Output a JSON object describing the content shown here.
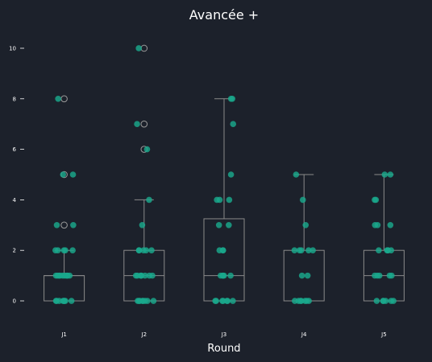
{
  "chart_data": {
    "type": "box",
    "title": "Avancée +",
    "xlabel": "Round",
    "ylabel": "",
    "ylim": [
      -0.7,
      10.7
    ],
    "yticks": [
      0,
      2,
      4,
      6,
      8,
      10
    ],
    "grid": false,
    "colors": {
      "background": "#1c212b",
      "box_stroke": "#8a8a8a",
      "whisker": "#8a8a8a",
      "points": "#1aa88c",
      "outlier_stroke": "#9a9a9a",
      "text": "#ffffff"
    },
    "categories": [
      "J1",
      "J2",
      "J3",
      "J4",
      "J5"
    ],
    "boxes": [
      {
        "category": "J1",
        "q1": 0,
        "median": 1,
        "q3": 1,
        "whisker_low": 0,
        "whisker_high": 2,
        "outliers": [
          3,
          5,
          8
        ]
      },
      {
        "category": "J2",
        "q1": 0,
        "median": 1,
        "q3": 2,
        "whisker_low": 0,
        "whisker_high": 4,
        "outliers": [
          6,
          7,
          10
        ]
      },
      {
        "category": "J3",
        "q1": 0,
        "median": 1,
        "q3": 3.25,
        "whisker_low": 0,
        "whisker_high": 8,
        "outliers": []
      },
      {
        "category": "J4",
        "q1": 0,
        "median": 0,
        "q3": 2,
        "whisker_low": 0,
        "whisker_high": 5,
        "outliers": []
      },
      {
        "category": "J5",
        "q1": 0,
        "median": 1,
        "q3": 2,
        "whisker_low": 0,
        "whisker_high": 5,
        "outliers": []
      }
    ],
    "points": [
      {
        "category": "J1",
        "values": [
          0,
          0,
          0,
          0,
          0,
          0,
          0,
          0,
          1,
          1,
          1,
          1,
          1,
          1,
          1,
          1,
          1,
          1,
          2,
          2,
          2,
          2,
          2,
          3,
          3,
          5,
          5,
          8
        ]
      },
      {
        "category": "J2",
        "values": [
          0,
          0,
          0,
          0,
          0,
          0,
          0,
          0,
          1,
          1,
          1,
          1,
          1,
          1,
          1,
          1,
          2,
          2,
          2,
          2,
          2,
          3,
          4,
          6,
          7,
          10
        ]
      },
      {
        "category": "J3",
        "values": [
          0,
          0,
          0,
          0,
          0,
          0,
          0,
          1,
          1,
          1,
          1,
          1,
          2,
          2,
          2,
          3,
          3,
          4,
          4,
          4,
          5,
          7,
          8,
          8
        ]
      },
      {
        "category": "J4",
        "values": [
          0,
          0,
          0,
          0,
          0,
          0,
          0,
          1,
          1,
          2,
          2,
          2,
          2,
          2,
          3,
          4,
          5
        ]
      },
      {
        "category": "J5",
        "values": [
          0,
          0,
          0,
          0,
          0,
          0,
          1,
          1,
          1,
          1,
          1,
          2,
          2,
          2,
          2,
          2,
          3,
          3,
          3,
          4,
          4,
          5,
          5
        ]
      }
    ]
  }
}
